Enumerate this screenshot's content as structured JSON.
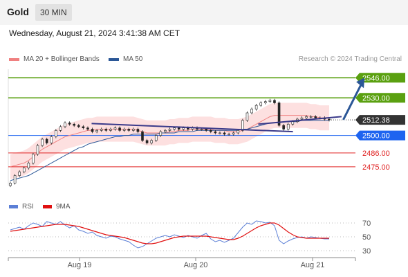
{
  "header": {
    "title": "Gold",
    "timeframe": "30 MIN",
    "timestamp": "Wednesday, August 21, 2024 3:41:38 AM CET"
  },
  "legend": {
    "ma20": {
      "label": "MA 20 + Bollinger Bands",
      "color": "#f08080"
    },
    "ma50": {
      "label": "MA 50",
      "color": "#2b5797"
    }
  },
  "copyright": "Research © 2024 Trading Central",
  "rsi_legend": {
    "rsi": {
      "label": "RSI",
      "color": "#5b7fd6"
    },
    "ma": {
      "label": "9MA",
      "color": "#e01010"
    }
  },
  "chart_data": [
    {
      "type": "candlestick",
      "x_ticks": [
        "Aug 19",
        "Aug 20",
        "Aug 21"
      ],
      "ylim": [
        2460,
        2555
      ],
      "current_price": {
        "label": "2512.38",
        "value": 2512.38
      },
      "levels": [
        {
          "label": "2546.00",
          "value": 2546.0,
          "kind": "resistance",
          "color": "#5aa010"
        },
        {
          "label": "2530.00",
          "value": 2530.0,
          "kind": "resistance",
          "color": "#5aa010"
        },
        {
          "label": "2500.00",
          "value": 2500.0,
          "kind": "pivot",
          "color": "#1e64f0"
        },
        {
          "label": "2486.00",
          "value": 2486.0,
          "kind": "support",
          "color": "#e02020"
        },
        {
          "label": "2475.00",
          "value": 2475.0,
          "kind": "support",
          "color": "#e02020"
        }
      ],
      "trend_lines": [
        {
          "from": [
            0.24,
            2509.5
          ],
          "to": [
            0.82,
            2503.0
          ]
        },
        {
          "from": [
            0.72,
            2509.0
          ],
          "to": [
            0.96,
            2515.0
          ]
        }
      ],
      "forecast_arrow": {
        "from": [
          0.965,
          2512.5
        ],
        "to": [
          1.03,
          2546.0
        ]
      },
      "close": [
        2462,
        2468,
        2471,
        2474,
        2478,
        2485,
        2492,
        2497,
        2494,
        2499,
        2504,
        2507,
        2510,
        2509,
        2508,
        2507,
        2506,
        2505,
        2503,
        2504,
        2505,
        2504,
        2505,
        2506,
        2504,
        2505,
        2504,
        2505,
        2503,
        2496,
        2494,
        2496,
        2500,
        2503,
        2504,
        2505,
        2506,
        2505,
        2506,
        2505,
        2506,
        2505,
        2505,
        2504,
        2503,
        2502,
        2502,
        2501,
        2501,
        2502,
        2504,
        2512,
        2518,
        2521,
        2524,
        2526,
        2527,
        2528,
        2526,
        2508,
        2505,
        2509,
        2511,
        2513,
        2514,
        2515,
        2515,
        2514,
        2514,
        2513,
        2512.38
      ],
      "ma20": [
        2475,
        2476,
        2477,
        2478,
        2480,
        2483,
        2486,
        2489,
        2491,
        2493,
        2495,
        2497,
        2499,
        2500,
        2501,
        2502,
        2503,
        2504,
        2504,
        2505,
        2505,
        2505,
        2505,
        2505,
        2505,
        2505,
        2505,
        2505,
        2504,
        2503,
        2502,
        2502,
        2502,
        2502,
        2502,
        2503,
        2503,
        2504,
        2504,
        2504,
        2505,
        2505,
        2505,
        2505,
        2505,
        2504,
        2504,
        2504,
        2503,
        2503,
        2503,
        2504,
        2505,
        2507,
        2509,
        2511,
        2513,
        2515,
        2516,
        2516,
        2516,
        2516,
        2516,
        2516,
        2516,
        2516,
        2515,
        2515,
        2514,
        2514,
        2514
      ],
      "ma50": [
        2464,
        2465,
        2466,
        2467,
        2468,
        2470,
        2472,
        2474,
        2476,
        2478,
        2480,
        2482,
        2484,
        2486,
        2488,
        2490,
        2491,
        2493,
        2494,
        2495,
        2496,
        2497,
        2498,
        2499,
        2499,
        2500,
        2500,
        2501,
        2501,
        2501,
        2501,
        2501,
        2501,
        2502,
        2502,
        2502,
        2502,
        2503,
        2503,
        2503,
        2503,
        2504,
        2504,
        2504,
        2504,
        2504,
        2504,
        2504,
        2504,
        2504,
        2504,
        2505,
        2505,
        2506,
        2507,
        2508,
        2509,
        2510,
        2510,
        2510,
        2511,
        2511,
        2511,
        2511,
        2512,
        2512,
        2512,
        2512,
        2512,
        2512,
        2512
      ],
      "band_width": 10
    },
    {
      "type": "line",
      "name": "RSI",
      "ylim": [
        20,
        80
      ],
      "y_ticks": [
        70,
        50,
        30
      ],
      "rsi": [
        60,
        62,
        64,
        61,
        66,
        70,
        68,
        65,
        72,
        70,
        68,
        72,
        67,
        63,
        66,
        60,
        58,
        55,
        57,
        52,
        50,
        48,
        51,
        50,
        47,
        45,
        43,
        38,
        34,
        36,
        40,
        44,
        48,
        50,
        52,
        50,
        53,
        51,
        49,
        52,
        50,
        48,
        52,
        55,
        47,
        43,
        45,
        42,
        45,
        48,
        56,
        64,
        70,
        68,
        73,
        72,
        70,
        71,
        66,
        45,
        40,
        44,
        47,
        49,
        50,
        48,
        50,
        49,
        48,
        47,
        47
      ],
      "ma9": [
        58,
        59,
        60,
        61,
        62,
        63,
        64,
        65,
        66,
        67,
        68,
        68,
        68,
        67,
        66,
        65,
        63,
        61,
        59,
        57,
        55,
        53,
        52,
        51,
        50,
        49,
        47,
        45,
        43,
        41,
        40,
        40,
        41,
        43,
        45,
        47,
        49,
        50,
        51,
        51,
        51,
        51,
        51,
        51,
        50,
        49,
        48,
        47,
        46,
        46,
        48,
        51,
        55,
        59,
        63,
        66,
        68,
        70,
        70,
        67,
        62,
        57,
        53,
        50,
        49,
        48,
        48,
        48,
        48,
        48,
        48
      ]
    }
  ]
}
